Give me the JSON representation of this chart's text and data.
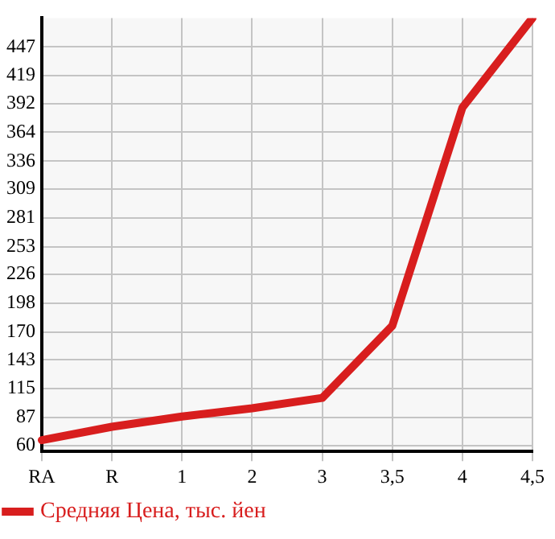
{
  "chart_data": {
    "type": "line",
    "categories": [
      "RA",
      "R",
      "1",
      "2",
      "3",
      "3,5",
      "4",
      "4,5"
    ],
    "series": [
      {
        "name": "Средняя Цена, тыс. йен",
        "color": "#d81e1e",
        "values": [
          65,
          78,
          88,
          96,
          106,
          176,
          388,
          475
        ]
      }
    ],
    "ylim": [
      54,
      475
    ],
    "yticks": [
      60,
      87,
      115,
      143,
      170,
      198,
      226,
      253,
      281,
      309,
      336,
      364,
      392,
      419,
      447
    ],
    "grid": true,
    "legend": "bottom left",
    "marker": "none",
    "line_style": "solid"
  }
}
